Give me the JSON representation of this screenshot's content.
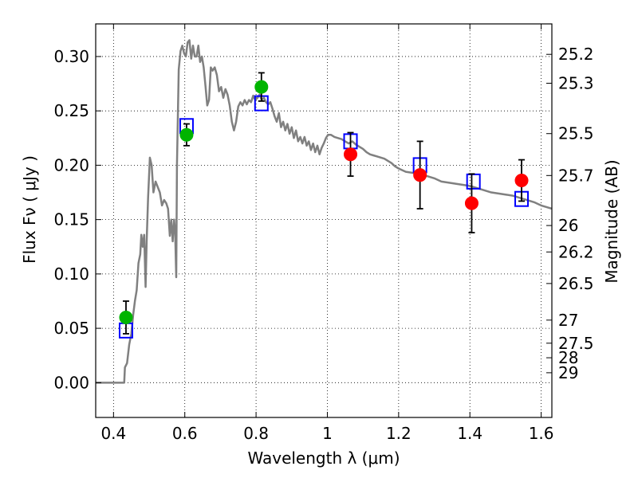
{
  "chart_data": {
    "type": "scatter",
    "xlabel": "Wavelength  λ (μm)",
    "ylabel_left": "Flux  Fν  ( μJy )",
    "ylabel_right": "Magnitude (AB)",
    "xlim": [
      0.35,
      1.63
    ],
    "ylim": [
      -0.032,
      0.33
    ],
    "grid": true,
    "x_ticks": [
      {
        "value": 0.4,
        "label": "0.4"
      },
      {
        "value": 0.6,
        "label": "0.6"
      },
      {
        "value": 0.8,
        "label": "0.8"
      },
      {
        "value": 1.0,
        "label": "1"
      },
      {
        "value": 1.2,
        "label": "1.2"
      },
      {
        "value": 1.4,
        "label": "1.4"
      },
      {
        "value": 1.6,
        "label": "1.6"
      }
    ],
    "y_ticks": [
      {
        "value": 0.0,
        "label": "0.00"
      },
      {
        "value": 0.05,
        "label": "0.05"
      },
      {
        "value": 0.1,
        "label": "0.10"
      },
      {
        "value": 0.15,
        "label": "0.15"
      },
      {
        "value": 0.2,
        "label": "0.20"
      },
      {
        "value": 0.25,
        "label": "0.25"
      },
      {
        "value": 0.3,
        "label": "0.30"
      }
    ],
    "mag_ticks": [
      {
        "value": 25.2,
        "label": "25.2"
      },
      {
        "value": 25.3,
        "label": "25.3"
      },
      {
        "value": 25.5,
        "label": "25.5"
      },
      {
        "value": 25.7,
        "label": "25.7"
      },
      {
        "value": 26.0,
        "label": "26"
      },
      {
        "value": 26.2,
        "label": "26.2"
      },
      {
        "value": 26.5,
        "label": "26.5"
      },
      {
        "value": 27.0,
        "label": "27"
      },
      {
        "value": 27.5,
        "label": "27.5"
      },
      {
        "value": 28.0,
        "label": "28"
      },
      {
        "value": 29.0,
        "label": "29"
      }
    ],
    "series": [
      {
        "kind": "line",
        "color": "#808080",
        "points": [
          [
            0.35,
            0.0
          ],
          [
            0.43,
            0.0
          ],
          [
            0.432,
            0.014
          ],
          [
            0.438,
            0.018
          ],
          [
            0.444,
            0.035
          ],
          [
            0.45,
            0.045
          ],
          [
            0.455,
            0.062
          ],
          [
            0.46,
            0.075
          ],
          [
            0.465,
            0.085
          ],
          [
            0.47,
            0.11
          ],
          [
            0.475,
            0.118
          ],
          [
            0.478,
            0.136
          ],
          [
            0.482,
            0.125
          ],
          [
            0.486,
            0.136
          ],
          [
            0.49,
            0.088
          ],
          [
            0.493,
            0.13
          ],
          [
            0.497,
            0.17
          ],
          [
            0.502,
            0.207
          ],
          [
            0.507,
            0.2
          ],
          [
            0.512,
            0.175
          ],
          [
            0.518,
            0.185
          ],
          [
            0.524,
            0.18
          ],
          [
            0.53,
            0.175
          ],
          [
            0.536,
            0.163
          ],
          [
            0.542,
            0.168
          ],
          [
            0.548,
            0.165
          ],
          [
            0.553,
            0.16
          ],
          [
            0.558,
            0.135
          ],
          [
            0.562,
            0.15
          ],
          [
            0.566,
            0.13
          ],
          [
            0.57,
            0.15
          ],
          [
            0.573,
            0.138
          ],
          [
            0.576,
            0.097
          ],
          [
            0.578,
            0.2
          ],
          [
            0.583,
            0.288
          ],
          [
            0.588,
            0.305
          ],
          [
            0.593,
            0.31
          ],
          [
            0.598,
            0.303
          ],
          [
            0.603,
            0.3
          ],
          [
            0.608,
            0.313
          ],
          [
            0.613,
            0.315
          ],
          [
            0.618,
            0.298
          ],
          [
            0.623,
            0.31
          ],
          [
            0.628,
            0.3
          ],
          [
            0.633,
            0.3
          ],
          [
            0.638,
            0.31
          ],
          [
            0.643,
            0.295
          ],
          [
            0.648,
            0.3
          ],
          [
            0.653,
            0.29
          ],
          [
            0.658,
            0.273
          ],
          [
            0.663,
            0.255
          ],
          [
            0.668,
            0.26
          ],
          [
            0.673,
            0.29
          ],
          [
            0.678,
            0.287
          ],
          [
            0.684,
            0.29
          ],
          [
            0.69,
            0.283
          ],
          [
            0.696,
            0.268
          ],
          [
            0.702,
            0.272
          ],
          [
            0.708,
            0.262
          ],
          [
            0.714,
            0.27
          ],
          [
            0.72,
            0.265
          ],
          [
            0.726,
            0.255
          ],
          [
            0.732,
            0.24
          ],
          [
            0.738,
            0.232
          ],
          [
            0.744,
            0.24
          ],
          [
            0.75,
            0.254
          ],
          [
            0.756,
            0.258
          ],
          [
            0.762,
            0.255
          ],
          [
            0.768,
            0.26
          ],
          [
            0.774,
            0.256
          ],
          [
            0.78,
            0.26
          ],
          [
            0.786,
            0.258
          ],
          [
            0.792,
            0.264
          ],
          [
            0.798,
            0.26
          ],
          [
            0.804,
            0.262
          ],
          [
            0.81,
            0.265
          ],
          [
            0.816,
            0.26
          ],
          [
            0.822,
            0.262
          ],
          [
            0.828,
            0.258
          ],
          [
            0.834,
            0.256
          ],
          [
            0.84,
            0.258
          ],
          [
            0.846,
            0.252
          ],
          [
            0.852,
            0.245
          ],
          [
            0.858,
            0.24
          ],
          [
            0.864,
            0.248
          ],
          [
            0.87,
            0.235
          ],
          [
            0.876,
            0.24
          ],
          [
            0.882,
            0.232
          ],
          [
            0.888,
            0.238
          ],
          [
            0.894,
            0.229
          ],
          [
            0.9,
            0.235
          ],
          [
            0.906,
            0.225
          ],
          [
            0.912,
            0.232
          ],
          [
            0.918,
            0.222
          ],
          [
            0.924,
            0.226
          ],
          [
            0.93,
            0.22
          ],
          [
            0.936,
            0.226
          ],
          [
            0.942,
            0.218
          ],
          [
            0.948,
            0.222
          ],
          [
            0.954,
            0.214
          ],
          [
            0.96,
            0.22
          ],
          [
            0.966,
            0.212
          ],
          [
            0.972,
            0.218
          ],
          [
            0.978,
            0.21
          ],
          [
            0.984,
            0.216
          ],
          [
            0.99,
            0.22
          ],
          [
            0.996,
            0.225
          ],
          [
            1.002,
            0.228
          ],
          [
            1.01,
            0.228
          ],
          [
            1.02,
            0.226
          ],
          [
            1.03,
            0.225
          ],
          [
            1.04,
            0.224
          ],
          [
            1.05,
            0.222
          ],
          [
            1.06,
            0.22
          ],
          [
            1.07,
            0.222
          ],
          [
            1.08,
            0.219
          ],
          [
            1.09,
            0.217
          ],
          [
            1.1,
            0.215
          ],
          [
            1.11,
            0.212
          ],
          [
            1.12,
            0.21
          ],
          [
            1.13,
            0.209
          ],
          [
            1.14,
            0.208
          ],
          [
            1.15,
            0.207
          ],
          [
            1.16,
            0.206
          ],
          [
            1.17,
            0.204
          ],
          [
            1.18,
            0.202
          ],
          [
            1.19,
            0.199
          ],
          [
            1.2,
            0.197
          ],
          [
            1.22,
            0.194
          ],
          [
            1.24,
            0.193
          ],
          [
            1.26,
            0.192
          ],
          [
            1.28,
            0.19
          ],
          [
            1.3,
            0.188
          ],
          [
            1.32,
            0.185
          ],
          [
            1.34,
            0.184
          ],
          [
            1.36,
            0.183
          ],
          [
            1.38,
            0.182
          ],
          [
            1.4,
            0.181
          ],
          [
            1.42,
            0.179
          ],
          [
            1.44,
            0.177
          ],
          [
            1.46,
            0.175
          ],
          [
            1.48,
            0.174
          ],
          [
            1.5,
            0.173
          ],
          [
            1.52,
            0.172
          ],
          [
            1.54,
            0.17
          ],
          [
            1.56,
            0.168
          ],
          [
            1.58,
            0.166
          ],
          [
            1.6,
            0.163
          ],
          [
            1.63,
            0.16
          ]
        ]
      },
      {
        "kind": "open-square",
        "color": "#0000ff",
        "points": [
          [
            0.435,
            0.048
          ],
          [
            0.605,
            0.236
          ],
          [
            0.815,
            0.257
          ],
          [
            1.065,
            0.222
          ],
          [
            1.26,
            0.2
          ],
          [
            1.41,
            0.185
          ],
          [
            1.545,
            0.169
          ]
        ]
      },
      {
        "kind": "circle-errorbar",
        "color": "#00b400",
        "points": [
          {
            "x": 0.435,
            "y": 0.06,
            "err": 0.015
          },
          {
            "x": 0.605,
            "y": 0.228,
            "err": 0.01
          },
          {
            "x": 0.815,
            "y": 0.272,
            "err": 0.013
          }
        ]
      },
      {
        "kind": "circle-errorbar",
        "color": "#ff0000",
        "points": [
          {
            "x": 1.065,
            "y": 0.21,
            "err": 0.02
          },
          {
            "x": 1.26,
            "y": 0.191,
            "err": 0.031
          },
          {
            "x": 1.405,
            "y": 0.165,
            "err": 0.027
          },
          {
            "x": 1.545,
            "y": 0.186,
            "err": 0.019
          }
        ]
      }
    ]
  }
}
